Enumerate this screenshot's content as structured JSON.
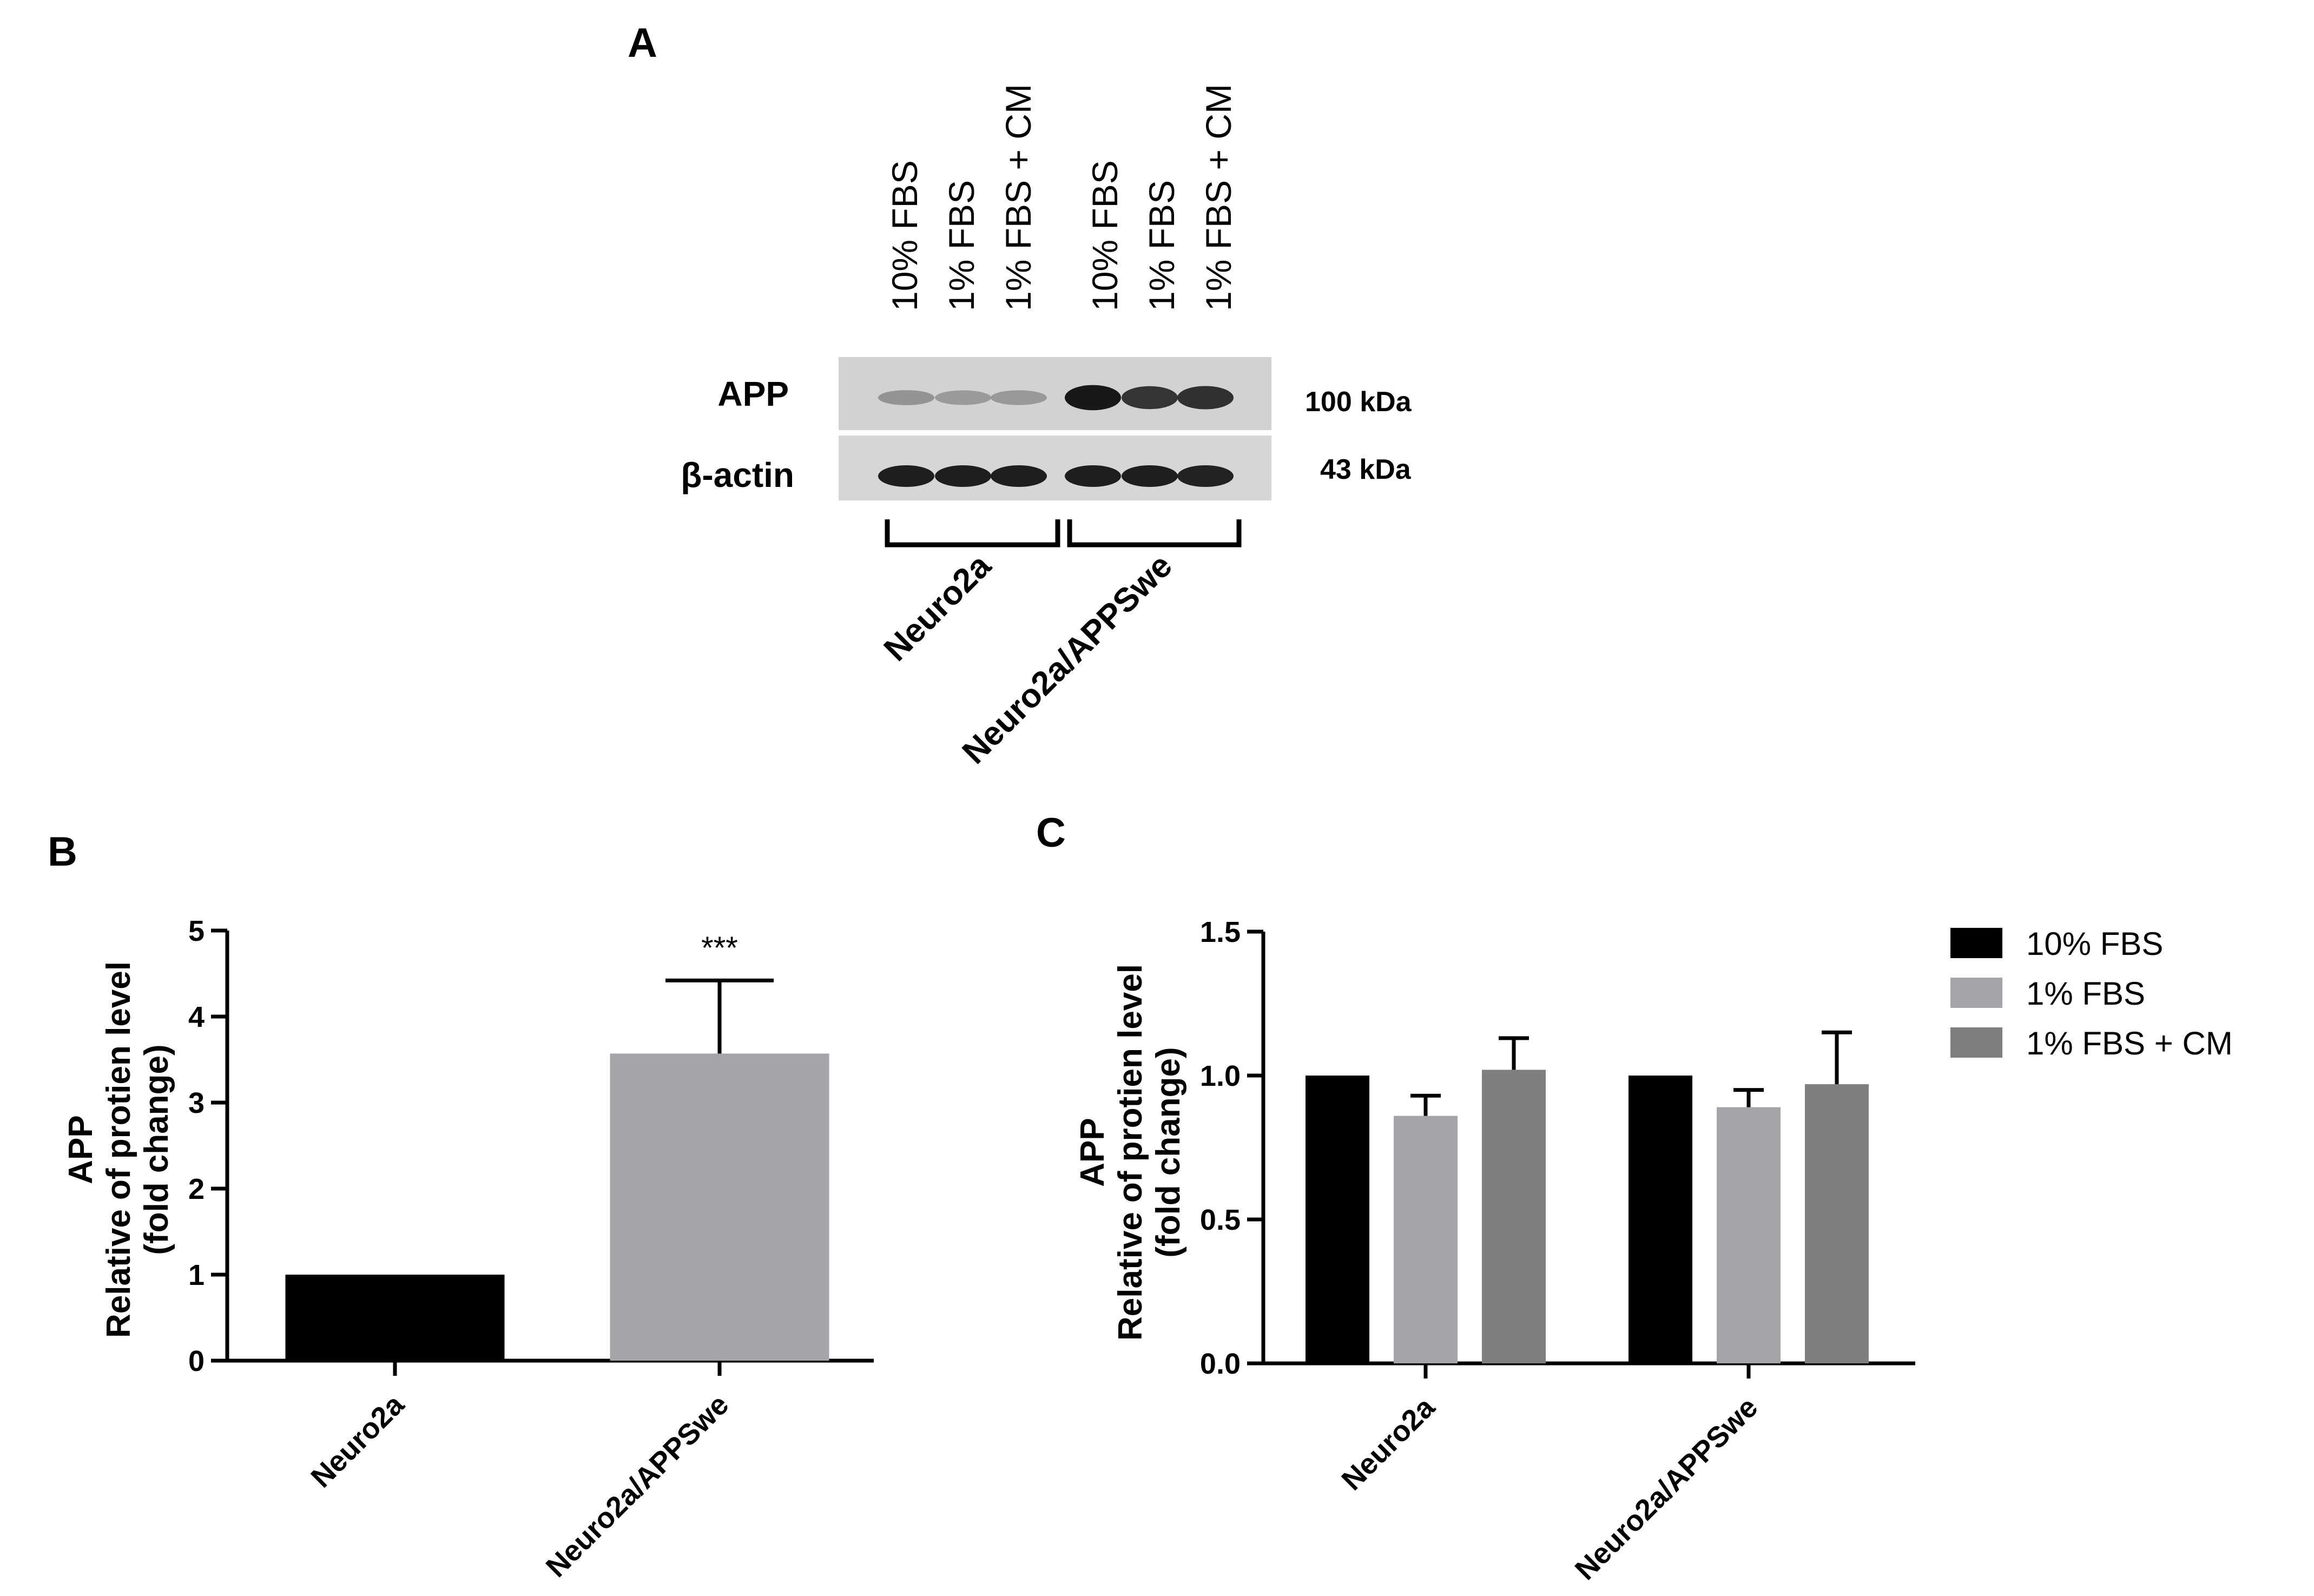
{
  "panel_a": {
    "letter": "A",
    "lane_labels": [
      "10% FBS",
      "1% FBS",
      "1% FBS + CM",
      "10% FBS",
      "1% FBS",
      "1% FBS + CM"
    ],
    "rows": [
      {
        "label": "APP",
        "kda": "100 kDa",
        "intensity": [
          0.28,
          0.25,
          0.26,
          0.95,
          0.8,
          0.82
        ]
      },
      {
        "label": "β-actin",
        "kda": "43 kDa",
        "intensity": [
          0.92,
          0.92,
          0.92,
          0.92,
          0.92,
          0.9
        ]
      }
    ],
    "groups": [
      {
        "label": "Neuro2a",
        "lanes": [
          0,
          1,
          2
        ]
      },
      {
        "label": "Neuro2a/APPSwe",
        "lanes": [
          3,
          4,
          5
        ]
      }
    ]
  },
  "chart_data": [
    {
      "panel": "B",
      "type": "bar",
      "categories": [
        "Neuro2a",
        "Neuro2a/APPSwe"
      ],
      "values": [
        1.0,
        3.57
      ],
      "errors": [
        0.0,
        0.85
      ],
      "colors": [
        "#000000",
        "#a5a5a9"
      ],
      "annotations": [
        "",
        "***"
      ],
      "ylabel": [
        "APP",
        "Relative of protien level",
        "(fold change)"
      ],
      "ylim": [
        0,
        5
      ],
      "yticks": [
        0,
        1,
        2,
        3,
        4,
        5
      ],
      "ytick_labels": [
        "0",
        "1",
        "2",
        "3",
        "4",
        "5"
      ],
      "grid": false
    },
    {
      "panel": "C",
      "type": "bar",
      "categories": [
        "Neuro2a",
        "Neuro2a/APPSwe"
      ],
      "series": [
        {
          "name": "10% FBS",
          "color": "#000000",
          "values": [
            1.0,
            1.0
          ],
          "errors": [
            0.0,
            0.0
          ]
        },
        {
          "name": "1% FBS",
          "color": "#a5a5a9",
          "values": [
            0.86,
            0.89
          ],
          "errors": [
            0.07,
            0.06
          ]
        },
        {
          "name": "1% FBS + CM",
          "color": "#7f7f7f",
          "values": [
            1.02,
            0.97
          ],
          "errors": [
            0.11,
            0.18
          ]
        }
      ],
      "ylabel": [
        "APP",
        "Relative of protien level",
        "(fold change)"
      ],
      "ylim": [
        0,
        1.5
      ],
      "yticks": [
        0,
        0.5,
        1.0,
        1.5
      ],
      "ytick_labels": [
        "0.0",
        "0.5",
        "1.0",
        "1.5"
      ],
      "legend_position": "top-right",
      "grid": false
    }
  ]
}
